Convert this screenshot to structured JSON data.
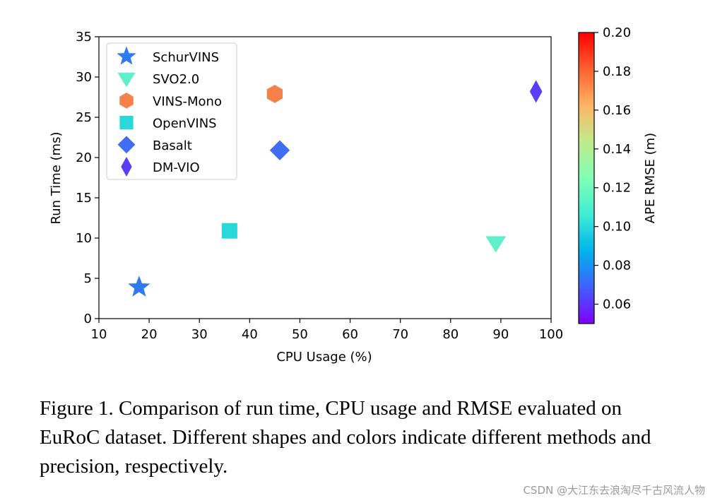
{
  "chart_data": {
    "type": "scatter",
    "xlabel": "CPU Usage (%)",
    "ylabel": "Run Time (ms)",
    "xlim": [
      10,
      100
    ],
    "ylim": [
      0,
      35
    ],
    "x_ticks": [
      10,
      20,
      30,
      40,
      50,
      60,
      70,
      80,
      90,
      100
    ],
    "y_ticks": [
      0,
      5,
      10,
      15,
      20,
      25,
      30,
      35
    ],
    "grid": false,
    "legend_position": "top-left",
    "series": [
      {
        "name": "SchurVINS",
        "marker": "star",
        "color": "#2f7cf2",
        "x": 18,
        "y": 3.9
      },
      {
        "name": "SVO2.0",
        "marker": "triangle-down",
        "color": "#5ef0cc",
        "x": 89,
        "y": 9.4
      },
      {
        "name": "VINS-Mono",
        "marker": "hexagon",
        "color": "#f5804a",
        "x": 45,
        "y": 27.9
      },
      {
        "name": "OpenVINS",
        "marker": "square",
        "color": "#2ad8dc",
        "x": 36,
        "y": 10.9
      },
      {
        "name": "Basalt",
        "marker": "diamond",
        "color": "#3f6ef3",
        "x": 46,
        "y": 20.9
      },
      {
        "name": "DM-VIO",
        "marker": "thin-diamond",
        "color": "#5a3ef8",
        "x": 97,
        "y": 28.2
      }
    ],
    "colorbar": {
      "label": "APE RMSE (m)",
      "range": [
        0.05,
        0.2
      ],
      "ticks": [
        "0.06",
        "0.08",
        "0.10",
        "0.12",
        "0.14",
        "0.16",
        "0.18",
        "0.20"
      ],
      "colors": [
        "#8000ff",
        "#4060fe",
        "#00b4ec",
        "#40ecd4",
        "#80ffb4",
        "#c0eb8c",
        "#ffb462",
        "#ff6030",
        "#ff0000"
      ]
    }
  },
  "caption": "Figure 1. Comparison of run time, CPU usage and RMSE evaluated on EuRoC dataset. Different shapes and colors indicate different methods and precision, respectively.",
  "watermark": "CSDN @大江东去浪淘尽千古风流人物"
}
